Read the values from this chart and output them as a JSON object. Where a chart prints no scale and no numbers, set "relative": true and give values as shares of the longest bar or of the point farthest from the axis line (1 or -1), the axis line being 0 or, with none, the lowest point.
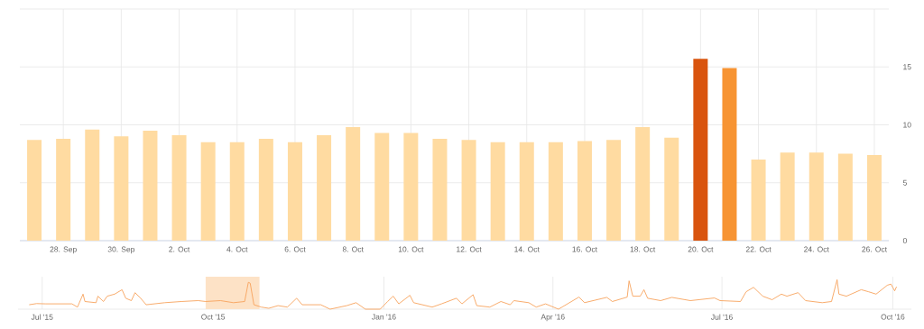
{
  "chart_data": [
    {
      "type": "bar",
      "categories": [
        null,
        "28. Sep",
        null,
        "30. Sep",
        null,
        "2. Oct",
        null,
        "4. Oct",
        null,
        "6. Oct",
        null,
        "8. Oct",
        null,
        "10. Oct",
        null,
        "12. Oct",
        null,
        "14. Oct",
        null,
        "16. Oct",
        null,
        "18. Oct",
        null,
        "20. Oct",
        null,
        "22. Oct",
        null,
        "24. Oct",
        null,
        "26. Oct"
      ],
      "values": [
        8.7,
        8.8,
        9.6,
        9.0,
        9.5,
        9.1,
        8.5,
        8.5,
        8.8,
        8.5,
        9.1,
        9.8,
        9.3,
        9.3,
        8.8,
        8.7,
        8.5,
        8.5,
        8.5,
        8.6,
        8.7,
        9.8,
        8.9,
        15.7,
        14.9,
        7.0,
        7.6,
        7.6,
        7.5,
        7.4
      ],
      "colors": [
        "#ffdba1",
        "#ffdba1",
        "#ffdba1",
        "#ffdba1",
        "#ffdba1",
        "#ffdba1",
        "#ffdba1",
        "#ffdba1",
        "#ffdba1",
        "#ffdba1",
        "#ffdba1",
        "#ffdba1",
        "#ffdba1",
        "#ffdba1",
        "#ffdba1",
        "#ffdba1",
        "#ffdba1",
        "#ffdba1",
        "#ffdba1",
        "#ffdba1",
        "#ffdba1",
        "#ffdba1",
        "#ffdba1",
        "#d9540e",
        "#f79433",
        "#ffdba1",
        "#ffdba1",
        "#ffdba1",
        "#ffdba1",
        "#ffdba1"
      ],
      "ylim": [
        0,
        20
      ],
      "yticks": [
        0,
        5,
        10,
        15,
        {
          "value": 20,
          "label": null
        }
      ],
      "grid": true
    },
    {
      "type": "line",
      "relative": true,
      "color": "#f7a35c",
      "marker": "none",
      "grid": "x",
      "xlim": [
        "2015-06-18",
        "2016-10-11"
      ],
      "xticks": [
        {
          "value": "2015-07-01",
          "label": "Jul '15"
        },
        {
          "value": "2015-10-01",
          "label": "Oct '15"
        },
        {
          "value": "2016-01-01",
          "label": "Jan '16"
        },
        {
          "value": "2016-04-01",
          "label": "Apr '16"
        },
        {
          "value": "2016-07-01",
          "label": "Jul '16"
        },
        {
          "value": "2016-10-01",
          "label": "Oct '16"
        }
      ],
      "bands": [
        {
          "axis": "x",
          "from": "2015-09-27",
          "to": "2015-10-26",
          "color": "#fde2c6"
        }
      ],
      "x": [
        "2015-06-24",
        "2015-06-28",
        "2015-07-03",
        "2015-07-09",
        "2015-07-17",
        "2015-07-20",
        "2015-07-23",
        "2015-07-24",
        "2015-07-30",
        "2015-07-31",
        "2015-08-03",
        "2015-08-05",
        "2015-08-09",
        "2015-08-13",
        "2015-08-15",
        "2015-08-18",
        "2015-08-20",
        "2015-08-23",
        "2015-08-26",
        "2015-09-05",
        "2015-09-14",
        "2015-09-23",
        "2015-09-27",
        "2015-10-05",
        "2015-10-12",
        "2015-10-18",
        "2015-10-20",
        "2015-10-21",
        "2015-10-23",
        "2015-10-27",
        "2015-10-31",
        "2015-11-05",
        "2015-11-10",
        "2015-11-15",
        "2015-11-18",
        "2015-11-28",
        "2015-12-03",
        "2015-12-12",
        "2015-12-17",
        "2015-12-22",
        "2015-12-30",
        "2016-01-03",
        "2016-01-06",
        "2016-01-09",
        "2016-01-15",
        "2016-01-17",
        "2016-01-27",
        "2016-02-01",
        "2016-02-09",
        "2016-02-12",
        "2016-02-18",
        "2016-02-20",
        "2016-02-27",
        "2016-03-04",
        "2016-03-09",
        "2016-03-11",
        "2016-03-19",
        "2016-03-23",
        "2016-03-28",
        "2016-04-04",
        "2016-04-15",
        "2016-04-18",
        "2016-04-30",
        "2016-05-03",
        "2016-05-11",
        "2016-05-12",
        "2016-05-14",
        "2016-05-18",
        "2016-05-20",
        "2016-05-22",
        "2016-05-29",
        "2016-06-04",
        "2016-06-14",
        "2016-06-27",
        "2016-06-30",
        "2016-07-11",
        "2016-07-14",
        "2016-07-18",
        "2016-07-23",
        "2016-07-28",
        "2016-08-02",
        "2016-08-05",
        "2016-08-11",
        "2016-08-15",
        "2016-08-24",
        "2016-08-29",
        "2016-09-01",
        "2016-09-02",
        "2016-09-06",
        "2016-09-14",
        "2016-09-18",
        "2016-09-22",
        "2016-09-28",
        "2016-09-30",
        "2016-10-02",
        "2016-10-03"
      ],
      "values": [
        0.15,
        0.19,
        0.18,
        0.18,
        0.18,
        0.07,
        0.51,
        0.26,
        0.22,
        0.44,
        0.26,
        0.44,
        0.51,
        0.66,
        0.37,
        0.29,
        0.56,
        0.37,
        0.15,
        0.22,
        0.26,
        0.29,
        0.26,
        0.29,
        0.22,
        0.26,
        0.91,
        0.88,
        0.15,
        0.07,
        0.03,
        0.12,
        0.07,
        0.37,
        0.15,
        0.15,
        0.0,
        0.12,
        0.22,
        0.0,
        0.0,
        0.26,
        0.44,
        0.18,
        0.47,
        0.22,
        0.07,
        0.18,
        0.37,
        0.18,
        0.49,
        0.12,
        0.07,
        0.26,
        0.15,
        0.29,
        0.22,
        0.07,
        0.18,
        0.0,
        0.41,
        0.22,
        0.4,
        0.26,
        0.41,
        0.96,
        0.44,
        0.44,
        0.66,
        0.37,
        0.29,
        0.4,
        0.29,
        0.38,
        0.29,
        0.26,
        0.59,
        0.74,
        0.44,
        0.32,
        0.51,
        0.44,
        0.56,
        0.29,
        0.22,
        0.26,
        1.0,
        0.51,
        0.44,
        0.66,
        0.59,
        0.51,
        0.81,
        0.85,
        0.62,
        0.76
      ]
    }
  ]
}
